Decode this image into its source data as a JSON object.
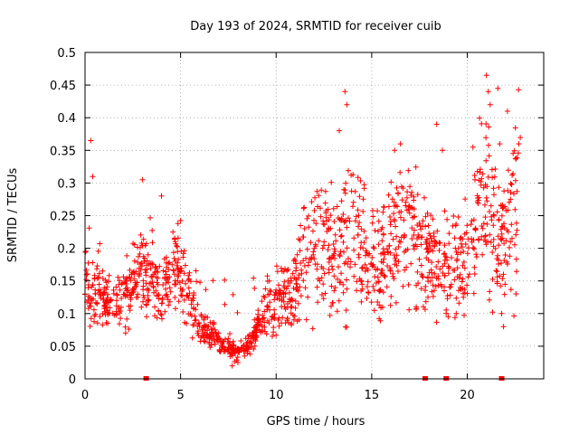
{
  "chart_data": {
    "type": "scatter",
    "title": "Day 193 of 2024, SRMTID for receiver cuib",
    "xlabel": "GPS time / hours",
    "ylabel": "SRMTID / TECUs",
    "xlim": [
      0,
      24
    ],
    "ylim": [
      0,
      0.5
    ],
    "xticks": [
      0,
      5,
      10,
      15,
      20
    ],
    "xtick_labels": [
      "0",
      "5",
      "10",
      "15",
      "20"
    ],
    "yticks": [
      0,
      0.05,
      0.1,
      0.15,
      0.2,
      0.25,
      0.3,
      0.35,
      0.4,
      0.45,
      0.5
    ],
    "ytick_labels": [
      "0",
      "0.05",
      "0.1",
      "0.15",
      "0.2",
      "0.25",
      "0.3",
      "0.35",
      "0.4",
      "0.45",
      "0.5"
    ],
    "grid": true,
    "marker": "+",
    "color": "#ff0000",
    "trend": [
      [
        0.0,
        0.15
      ],
      [
        0.5,
        0.13
      ],
      [
        1.0,
        0.12
      ],
      [
        1.5,
        0.11
      ],
      [
        2.0,
        0.12
      ],
      [
        2.5,
        0.14
      ],
      [
        3.0,
        0.17
      ],
      [
        3.5,
        0.15
      ],
      [
        4.0,
        0.13
      ],
      [
        4.5,
        0.16
      ],
      [
        5.0,
        0.18
      ],
      [
        5.5,
        0.11
      ],
      [
        6.0,
        0.08
      ],
      [
        6.5,
        0.07
      ],
      [
        7.0,
        0.06
      ],
      [
        7.5,
        0.05
      ],
      [
        8.0,
        0.04
      ],
      [
        8.5,
        0.05
      ],
      [
        9.0,
        0.08
      ],
      [
        9.5,
        0.11
      ],
      [
        10.0,
        0.12
      ],
      [
        10.5,
        0.13
      ],
      [
        11.0,
        0.14
      ],
      [
        11.5,
        0.18
      ],
      [
        12.0,
        0.22
      ],
      [
        12.5,
        0.2
      ],
      [
        13.0,
        0.18
      ],
      [
        13.5,
        0.23
      ],
      [
        14.0,
        0.22
      ],
      [
        14.5,
        0.2
      ],
      [
        15.0,
        0.17
      ],
      [
        15.5,
        0.18
      ],
      [
        16.0,
        0.21
      ],
      [
        16.5,
        0.23
      ],
      [
        17.0,
        0.22
      ],
      [
        17.5,
        0.2
      ],
      [
        18.0,
        0.18
      ],
      [
        18.5,
        0.17
      ],
      [
        19.0,
        0.16
      ],
      [
        19.5,
        0.17
      ],
      [
        20.0,
        0.2
      ],
      [
        20.5,
        0.24
      ],
      [
        21.0,
        0.27
      ],
      [
        21.5,
        0.22
      ],
      [
        22.0,
        0.2
      ],
      [
        22.5,
        0.26
      ],
      [
        22.8,
        0.28
      ]
    ],
    "highlights": [
      [
        0.3,
        0.365
      ],
      [
        0.4,
        0.31
      ],
      [
        3.0,
        0.305
      ],
      [
        4.0,
        0.28
      ],
      [
        13.6,
        0.44
      ],
      [
        13.7,
        0.42
      ],
      [
        13.3,
        0.38
      ],
      [
        16.2,
        0.35
      ],
      [
        16.5,
        0.36
      ],
      [
        18.4,
        0.39
      ],
      [
        18.7,
        0.35
      ],
      [
        20.3,
        0.355
      ],
      [
        21.0,
        0.465
      ],
      [
        21.1,
        0.44
      ],
      [
        21.2,
        0.42
      ],
      [
        21.6,
        0.445
      ],
      [
        21.7,
        0.36
      ],
      [
        22.1,
        0.41
      ],
      [
        22.7,
        0.36
      ],
      [
        21.8,
        0.1
      ],
      [
        21.9,
        0.08
      ],
      [
        8.0,
        0.025
      ],
      [
        7.7,
        0.02
      ]
    ],
    "missing_data_markers": [
      3.2,
      17.8,
      18.9,
      21.8
    ]
  }
}
